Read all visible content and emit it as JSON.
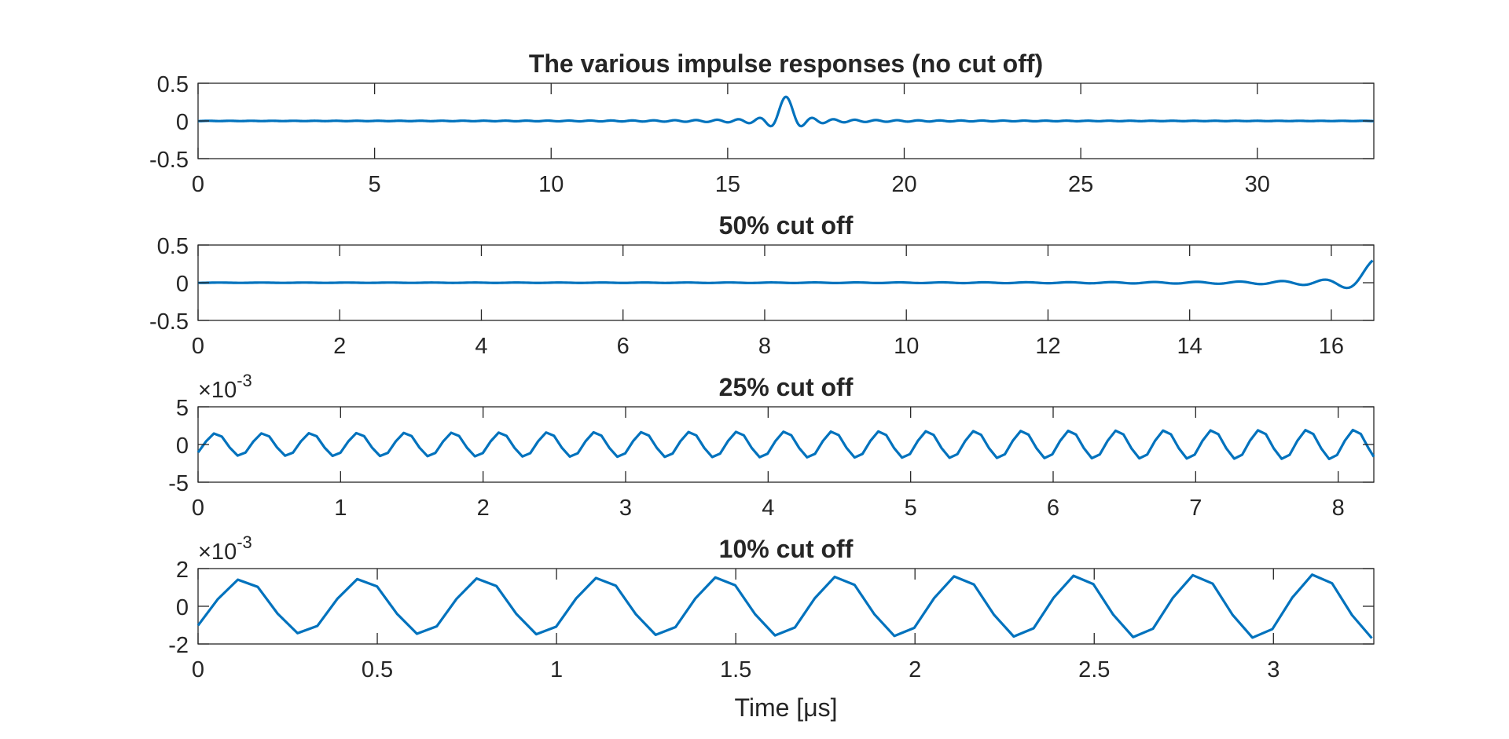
{
  "chart_data": [
    {
      "type": "line",
      "title": "The various impulse responses (no cut off)",
      "xlabel": "",
      "ylabel": "",
      "xlim": [
        0,
        33.3
      ],
      "ylim": [
        -0.5,
        0.5
      ],
      "xticks": [
        0,
        5,
        10,
        15,
        20,
        25,
        30
      ],
      "xtick_labels": [
        "0",
        "5",
        "10",
        "15",
        "20",
        "25",
        "30"
      ],
      "yticks": [
        -0.5,
        0,
        0.5
      ],
      "ytick_labels": [
        "-0.5",
        "0",
        "0.5"
      ],
      "exponent_label": "",
      "grid": false,
      "series": [
        {
          "color": "#0072BD",
          "signal": {
            "kind": "sinc",
            "center": 16.65,
            "peak": 0.32,
            "zero_spacing": 0.3,
            "sample_step": 0.0333,
            "x_start": 0,
            "x_end": 33.3
          }
        }
      ]
    },
    {
      "type": "line",
      "title": "50% cut off",
      "xlabel": "",
      "ylabel": "",
      "xlim": [
        0,
        16.6
      ],
      "ylim": [
        -0.5,
        0.5
      ],
      "xticks": [
        0,
        2,
        4,
        6,
        8,
        10,
        12,
        14,
        16
      ],
      "xtick_labels": [
        "0",
        "2",
        "4",
        "6",
        "8",
        "10",
        "12",
        "14",
        "16"
      ],
      "yticks": [
        -0.5,
        0,
        0.5
      ],
      "ytick_labels": [
        "-0.5",
        "0",
        "0.5"
      ],
      "exponent_label": "",
      "grid": false,
      "series": [
        {
          "color": "#0072BD",
          "signal": {
            "kind": "sinc",
            "center": 16.65,
            "peak": 0.32,
            "zero_spacing": 0.3,
            "sample_step": 0.0333,
            "x_start": 0,
            "x_end": 16.6
          }
        }
      ]
    },
    {
      "type": "line",
      "title": "25% cut off",
      "xlabel": "",
      "ylabel": "",
      "xlim": [
        0,
        8.25
      ],
      "ylim": [
        -5,
        5
      ],
      "xticks": [
        0,
        1,
        2,
        3,
        4,
        5,
        6,
        7,
        8
      ],
      "xtick_labels": [
        "0",
        "1",
        "2",
        "3",
        "4",
        "5",
        "6",
        "7",
        "8"
      ],
      "yticks": [
        -5,
        0,
        5
      ],
      "ytick_labels": [
        "-5",
        "0",
        "5"
      ],
      "exponent_label": "×10^-3",
      "grid": false,
      "series": [
        {
          "color": "#0072BD",
          "signal": {
            "kind": "oscillation",
            "period": 0.333,
            "phase": -0.042,
            "amp_start": 1.5,
            "amp_end": 2.0,
            "sample_step": 0.0555,
            "x_start": 0,
            "x_end": 8.25
          }
        }
      ]
    },
    {
      "type": "line",
      "title": "10% cut off",
      "xlabel": "Time [μs]",
      "ylabel": "",
      "xlim": [
        0,
        3.28
      ],
      "ylim": [
        -2,
        2
      ],
      "xticks": [
        0,
        0.5,
        1,
        1.5,
        2,
        2.5,
        3
      ],
      "xtick_labels": [
        "0",
        "0.5",
        "1",
        "1.5",
        "2",
        "2.5",
        "3"
      ],
      "yticks": [
        -2,
        0,
        2
      ],
      "ytick_labels": [
        "-2",
        "0",
        "2"
      ],
      "exponent_label": "×10^-3",
      "grid": false,
      "series": [
        {
          "color": "#0072BD",
          "signal": {
            "kind": "oscillation",
            "period": 0.333,
            "phase": -0.042,
            "amp_start": 1.45,
            "amp_end": 1.75,
            "sample_step": 0.0555,
            "x_start": 0,
            "x_end": 3.28
          }
        }
      ]
    }
  ]
}
